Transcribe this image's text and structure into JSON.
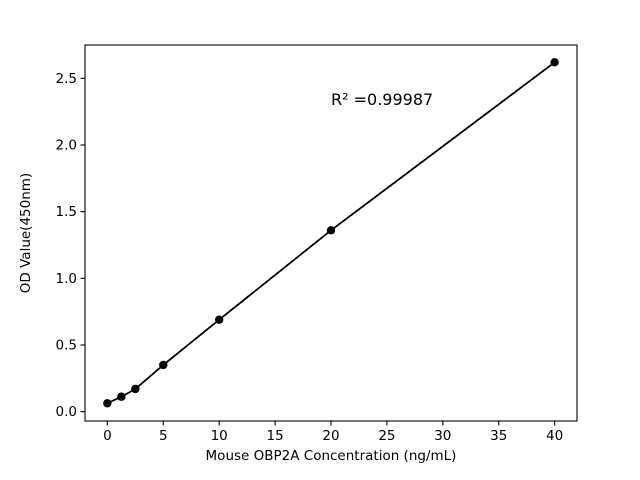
{
  "chart_data": {
    "type": "scatter",
    "title": "",
    "xlabel": "Mouse OBP2A Concentration (ng/mL)",
    "ylabel": "OD Value(450nm)",
    "x": [
      0,
      1.25,
      2.5,
      5,
      10,
      20,
      40
    ],
    "y": [
      0.063,
      0.112,
      0.17,
      0.35,
      0.69,
      1.36,
      2.62
    ],
    "xlim": [
      -2,
      42
    ],
    "ylim": [
      -0.07,
      2.75
    ],
    "xticks": [
      0,
      5,
      10,
      15,
      20,
      25,
      30,
      35,
      40
    ],
    "xtick_labels": [
      "0",
      "5",
      "10",
      "15",
      "20",
      "25",
      "30",
      "35",
      "40"
    ],
    "yticks": [
      0.0,
      0.5,
      1.0,
      1.5,
      2.0,
      2.5
    ],
    "ytick_labels": [
      "0.0",
      "0.5",
      "1.0",
      "1.5",
      "2.0",
      "2.5"
    ],
    "grid": false,
    "legend": null,
    "line_color": "#000000",
    "marker_color": "#000000",
    "background_color": "#ffffff",
    "annotation": {
      "text": "R² =0.99987",
      "x": 20,
      "y": 2.3
    }
  }
}
